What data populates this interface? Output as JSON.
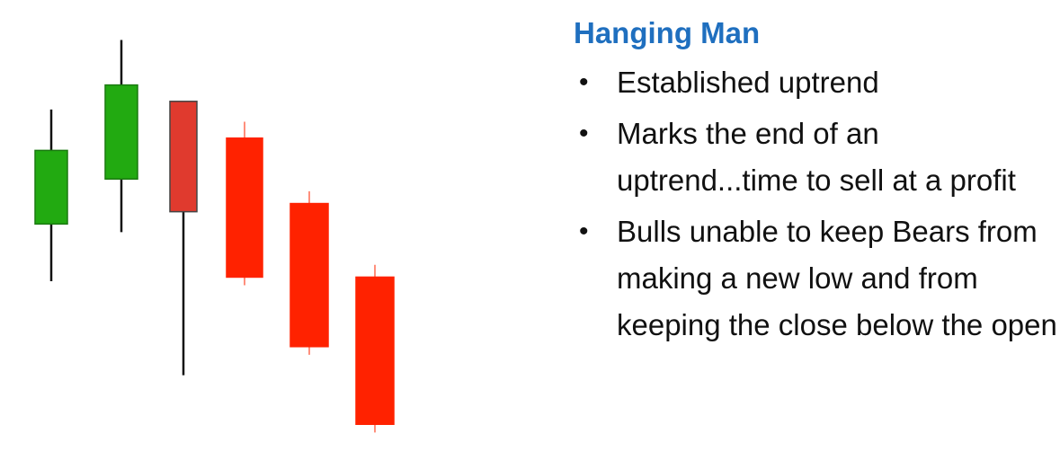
{
  "title": "Hanging Man",
  "bullets": [
    {
      "text": "Established uptrend"
    },
    {
      "text": "Marks the end of an uptrend...time to sell at a profit"
    },
    {
      "text": "Bulls unable to keep Bears from making a new low and from keeping the close below the open"
    }
  ],
  "colors": {
    "title": "#1f6fbf",
    "bullish": "#22aa11",
    "hanging_man": "#e03a2e",
    "bearish": "#ff2200",
    "wick": "#111111"
  },
  "chart_data": {
    "type": "candlestick",
    "ylim": [
      0,
      100
    ],
    "candles": [
      {
        "direction": "up",
        "open": 54,
        "close": 72,
        "high": 82,
        "low": 40,
        "role": "uptrend"
      },
      {
        "direction": "up",
        "open": 65,
        "close": 88,
        "high": 99,
        "low": 52,
        "role": "uptrend"
      },
      {
        "direction": "down",
        "open": 84,
        "close": 57,
        "high": 84,
        "low": 17,
        "role": "hanging-man"
      },
      {
        "direction": "down",
        "open": 75,
        "close": 41,
        "high": 79,
        "low": 39,
        "role": "downtrend"
      },
      {
        "direction": "down",
        "open": 59,
        "close": 24,
        "high": 62,
        "low": 22,
        "role": "downtrend"
      },
      {
        "direction": "down",
        "open": 41,
        "close": 5,
        "high": 44,
        "low": 3,
        "role": "downtrend"
      }
    ]
  }
}
